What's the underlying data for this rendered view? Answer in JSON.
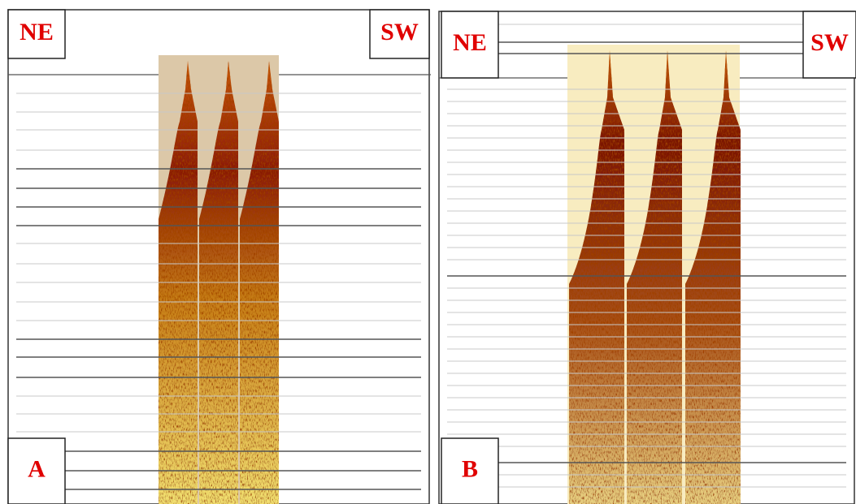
{
  "panels": [
    {
      "label": "A",
      "left": "NE",
      "right": "SW"
    },
    {
      "label": "B",
      "left": "NE",
      "right": "SW"
    }
  ]
}
